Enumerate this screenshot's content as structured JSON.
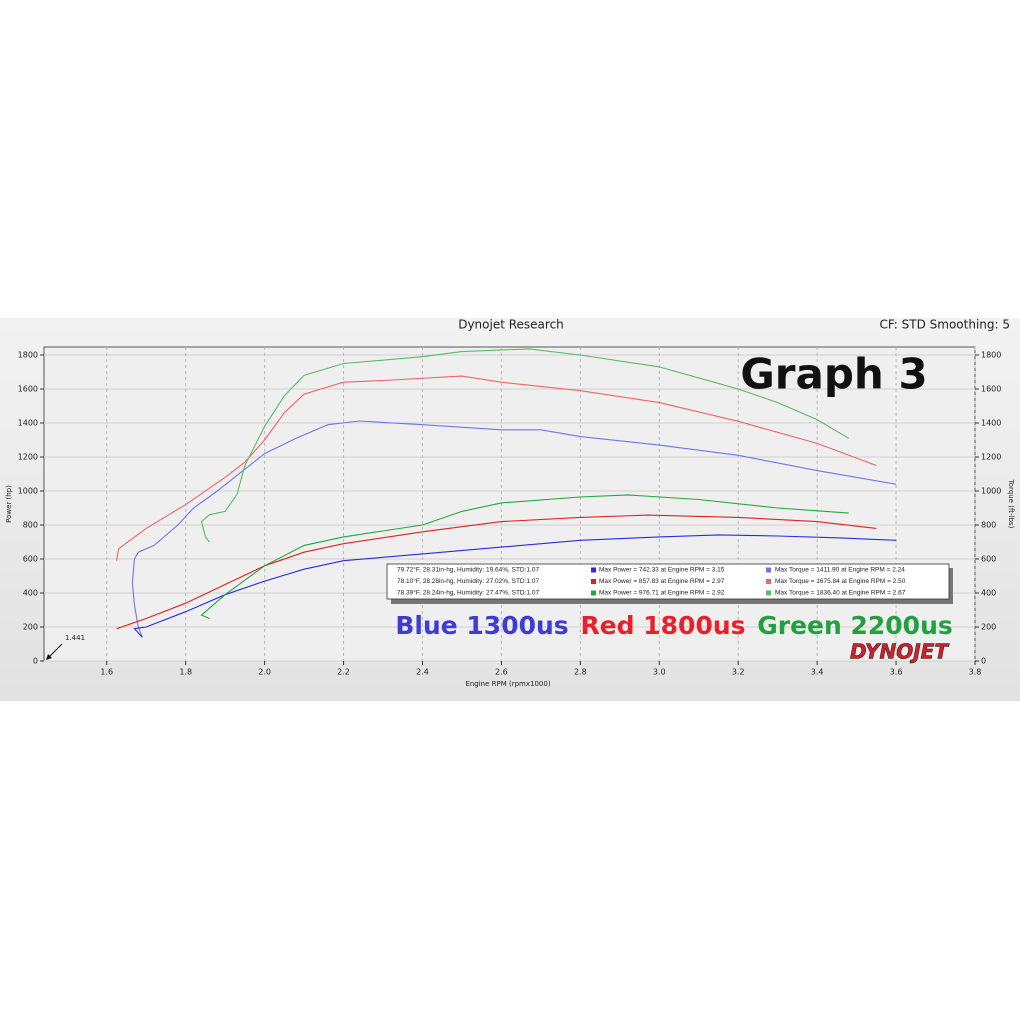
{
  "chart_data": {
    "type": "line",
    "title": "Dynojet Research",
    "subtitle": "CF: STD Smoothing: 5",
    "heading": "Graph 3",
    "x_label": "Engine RPM (rpmx1000)",
    "y_label": "Power (hp)",
    "y2_label": "Torque (ft-lbs)",
    "annotation": "1.441",
    "logo": "DYNOJET",
    "xlim": [
      1.441,
      3.8
    ],
    "xticks": [
      1.6,
      1.8,
      {
        "value": 2,
        "label": "2.0"
      },
      2.2,
      2.4,
      2.6,
      2.8,
      {
        "value": 3,
        "label": "3.0"
      },
      3.2,
      3.4,
      3.6,
      3.8
    ],
    "ylim": [
      0,
      1800
    ],
    "yticks": [
      0,
      200,
      400,
      600,
      800,
      1000,
      1200,
      1400,
      1600,
      1800
    ],
    "y2lim": [
      0,
      1800
    ],
    "y2ticks": [
      0,
      200,
      400,
      600,
      800,
      1000,
      1200,
      1400,
      1600,
      1800
    ],
    "grid": true,
    "runs": [
      {
        "name": "Blue 1300us",
        "color": "#3d3dd6",
        "power_color": "#2a2ae0",
        "torque_color": "#7474ea",
        "conditions": "79.72°F, 28.31in-hg, Humidity: 19.64%, STD:1.07",
        "max_power": "Max Power = 742.33 at Engine RPM = 3.15",
        "max_torque": "Max Torque = 1411.90 at Engine RPM = 2.24",
        "power": {
          "x": [
            1.69,
            1.67,
            1.7,
            1.8,
            1.9,
            2.0,
            2.1,
            2.2,
            2.4,
            2.6,
            2.8,
            3.0,
            3.15,
            3.3,
            3.45,
            3.6
          ],
          "values": [
            140,
            190,
            200,
            290,
            390,
            470,
            540,
            590,
            630,
            670,
            710,
            730,
            742,
            735,
            725,
            710
          ]
        },
        "torque": {
          "x": [
            1.69,
            1.68,
            1.67,
            1.665,
            1.67,
            1.68,
            1.72,
            1.78,
            1.82,
            1.88,
            1.94,
            2.0,
            2.08,
            2.16,
            2.24,
            2.4,
            2.6,
            2.7,
            2.8,
            3.0,
            3.2,
            3.4,
            3.6
          ],
          "values": [
            140,
            200,
            330,
            460,
            600,
            640,
            680,
            800,
            900,
            1000,
            1110,
            1220,
            1310,
            1390,
            1412,
            1390,
            1360,
            1360,
            1320,
            1270,
            1210,
            1120,
            1040
          ]
        }
      },
      {
        "name": "Red 1800us",
        "color": "#e8202a",
        "power_color": "#e02020",
        "torque_color": "#f06464",
        "conditions": "78.10°F, 28.28in-hg, Humidity: 27.02%, STD:1.07",
        "max_power": "Max Power = 857.83 at Engine RPM = 2.97",
        "max_torque": "Max Torque = 1675.84 at Engine RPM = 2.50",
        "power": {
          "x": [
            1.625,
            1.7,
            1.8,
            1.9,
            2.0,
            2.1,
            2.2,
            2.4,
            2.6,
            2.8,
            2.97,
            3.2,
            3.4,
            3.55
          ],
          "values": [
            190,
            250,
            340,
            450,
            560,
            640,
            690,
            760,
            820,
            845,
            858,
            845,
            820,
            780
          ]
        },
        "torque": {
          "x": [
            1.625,
            1.63,
            1.7,
            1.8,
            1.9,
            1.95,
            2.0,
            2.05,
            2.1,
            2.2,
            2.3,
            2.5,
            2.6,
            2.8,
            3.0,
            3.2,
            3.4,
            3.55
          ],
          "values": [
            590,
            660,
            780,
            920,
            1080,
            1170,
            1300,
            1460,
            1570,
            1640,
            1650,
            1676,
            1640,
            1590,
            1520,
            1410,
            1280,
            1150
          ]
        }
      },
      {
        "name": "Green 2200us",
        "color": "#22a040",
        "power_color": "#1faa3a",
        "torque_color": "#55bb66",
        "conditions": "78.39°F, 28.24in-hg, Humidity: 27.47%, STD:1.07",
        "max_power": "Max Power = 976.71 at Engine RPM = 2.92",
        "max_torque": "Max Torque = 1836.40 at Engine RPM = 2.67",
        "power": {
          "x": [
            1.86,
            1.84,
            1.9,
            2.0,
            2.1,
            2.2,
            2.4,
            2.5,
            2.6,
            2.8,
            2.92,
            3.1,
            3.3,
            3.48
          ],
          "values": [
            250,
            270,
            390,
            560,
            680,
            730,
            800,
            880,
            930,
            965,
            977,
            950,
            900,
            870
          ]
        },
        "torque": {
          "x": [
            1.86,
            1.85,
            1.84,
            1.86,
            1.9,
            1.93,
            1.95,
            2.0,
            2.05,
            2.1,
            2.2,
            2.4,
            2.5,
            2.67,
            2.8,
            3.0,
            3.2,
            3.3,
            3.4,
            3.48
          ],
          "values": [
            700,
            730,
            820,
            860,
            880,
            980,
            1150,
            1380,
            1560,
            1680,
            1750,
            1790,
            1820,
            1836,
            1800,
            1730,
            1600,
            1520,
            1420,
            1310
          ]
        }
      }
    ]
  }
}
